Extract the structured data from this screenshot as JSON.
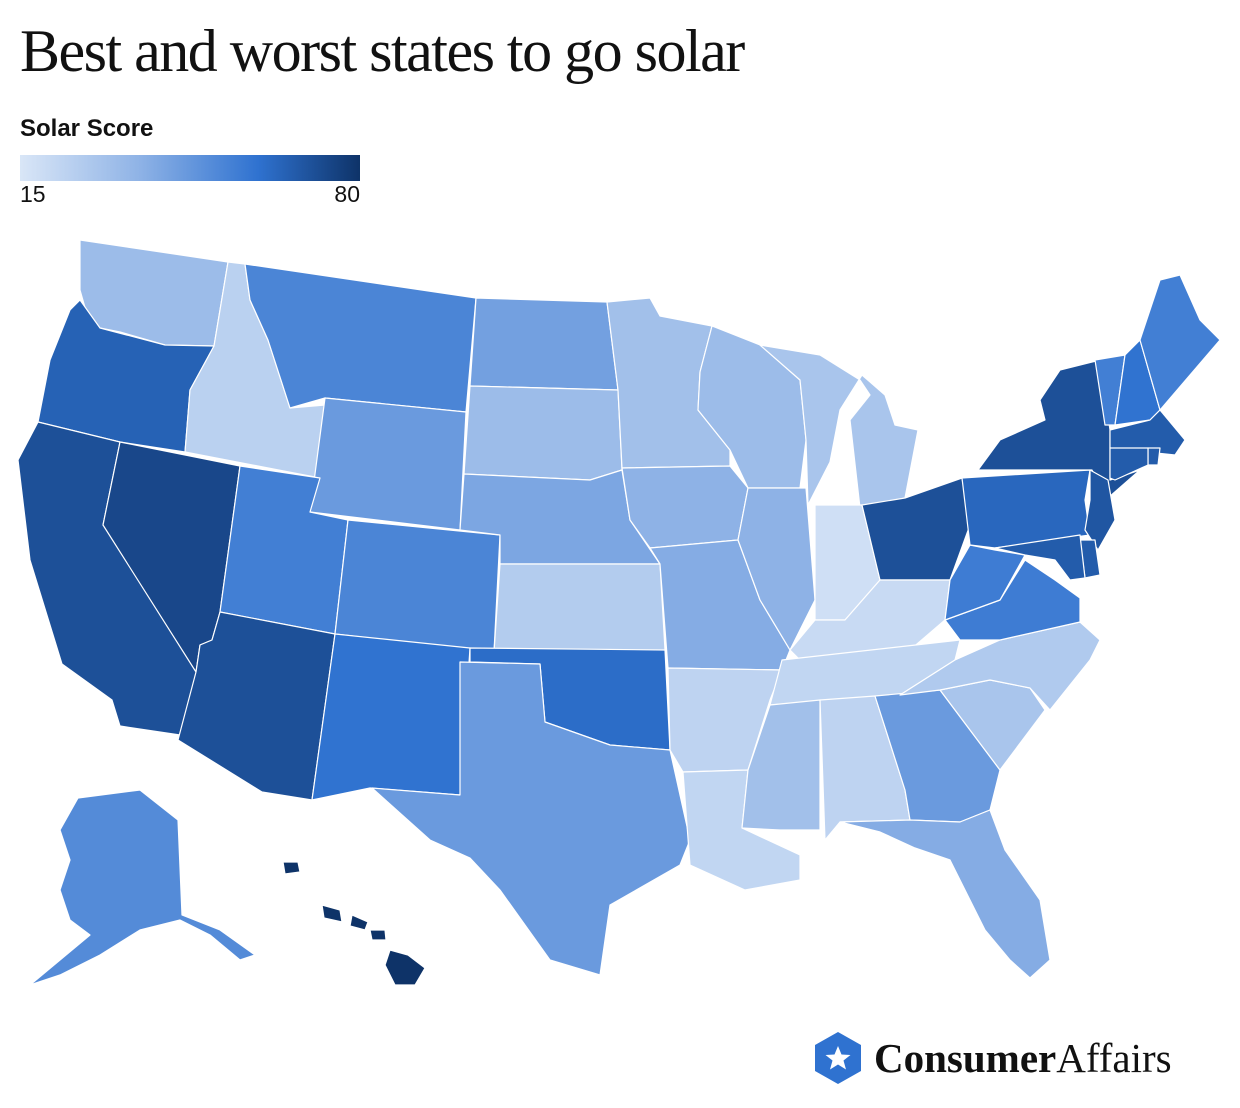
{
  "title": "Best and worst states to go solar",
  "legend": {
    "title": "Solar Score",
    "min_label": "15",
    "max_label": "80",
    "min": 15,
    "max": 80,
    "colors": [
      "#d9e6f7",
      "#8fb3e6",
      "#2f72d0",
      "#0e3368"
    ]
  },
  "brand": {
    "name_bold": "Consumer",
    "name_regular": "Affairs",
    "icon": "star-hexagon-icon",
    "color": "#2f72d0"
  },
  "states": [
    {
      "code": "WA",
      "score": 33
    },
    {
      "code": "OR",
      "score": 64
    },
    {
      "code": "CA",
      "score": 70
    },
    {
      "code": "NV",
      "score": 73
    },
    {
      "code": "ID",
      "score": 24
    },
    {
      "code": "MT",
      "score": 52
    },
    {
      "code": "WY",
      "score": 45
    },
    {
      "code": "UT",
      "score": 54
    },
    {
      "code": "AZ",
      "score": 70
    },
    {
      "code": "CO",
      "score": 52
    },
    {
      "code": "NM",
      "score": 58
    },
    {
      "code": "ND",
      "score": 43
    },
    {
      "code": "SD",
      "score": 33
    },
    {
      "code": "NE",
      "score": 41
    },
    {
      "code": "KS",
      "score": 26
    },
    {
      "code": "OK",
      "score": 60
    },
    {
      "code": "TX",
      "score": 45
    },
    {
      "code": "MN",
      "score": 31
    },
    {
      "code": "IA",
      "score": 37
    },
    {
      "code": "MO",
      "score": 39
    },
    {
      "code": "AR",
      "score": 23
    },
    {
      "code": "LA",
      "score": 22
    },
    {
      "code": "WI",
      "score": 33
    },
    {
      "code": "IL",
      "score": 37
    },
    {
      "code": "MI",
      "score": 29
    },
    {
      "code": "IN",
      "score": 18
    },
    {
      "code": "OH",
      "score": 70
    },
    {
      "code": "KY",
      "score": 20
    },
    {
      "code": "TN",
      "score": 22
    },
    {
      "code": "MS",
      "score": 31
    },
    {
      "code": "AL",
      "score": 23
    },
    {
      "code": "GA",
      "score": 45
    },
    {
      "code": "FL",
      "score": 39
    },
    {
      "code": "SC",
      "score": 29
    },
    {
      "code": "NC",
      "score": 27
    },
    {
      "code": "VA",
      "score": 55
    },
    {
      "code": "WV",
      "score": 55
    },
    {
      "code": "PA",
      "score": 62
    },
    {
      "code": "NY",
      "score": 70
    },
    {
      "code": "VT",
      "score": 54
    },
    {
      "code": "NH",
      "score": 58
    },
    {
      "code": "ME",
      "score": 54
    },
    {
      "code": "MA",
      "score": 66
    },
    {
      "code": "RI",
      "score": 66
    },
    {
      "code": "CT",
      "score": 66
    },
    {
      "code": "NJ",
      "score": 68
    },
    {
      "code": "DE",
      "score": 66
    },
    {
      "code": "MD",
      "score": 66
    },
    {
      "code": "AK",
      "score": 50
    },
    {
      "code": "HI",
      "score": 80
    }
  ]
}
